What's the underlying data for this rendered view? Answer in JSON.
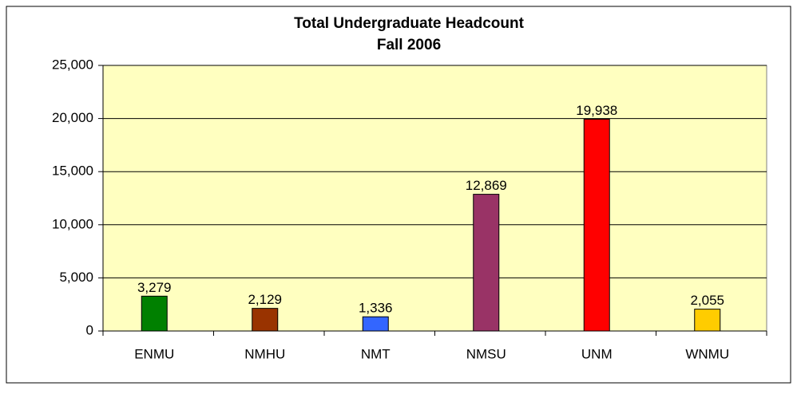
{
  "chart_data": {
    "type": "bar",
    "title": "Total Undergraduate Headcount",
    "subtitle": "Fall 2006",
    "categories": [
      "ENMU",
      "NMHU",
      "NMT",
      "NMSU",
      "UNM",
      "WNMU"
    ],
    "values": [
      3279,
      2129,
      1336,
      12869,
      19938,
      2055
    ],
    "value_labels": [
      "3,279",
      "2,129",
      "1,336",
      "12,869",
      "19,938",
      "2,055"
    ],
    "colors": [
      "#008000",
      "#993300",
      "#3366ff",
      "#993366",
      "#ff0000",
      "#ffcc00"
    ],
    "ylim": [
      0,
      25000
    ],
    "yticks": [
      0,
      {
        "value": 5000,
        "label": "5,000"
      },
      {
        "value": 10000,
        "label": "10,000"
      },
      {
        "value": 15000,
        "label": "15,000"
      },
      {
        "value": 20000,
        "label": "20,000"
      },
      {
        "value": 25000,
        "label": "25,000"
      }
    ],
    "grid": true
  }
}
